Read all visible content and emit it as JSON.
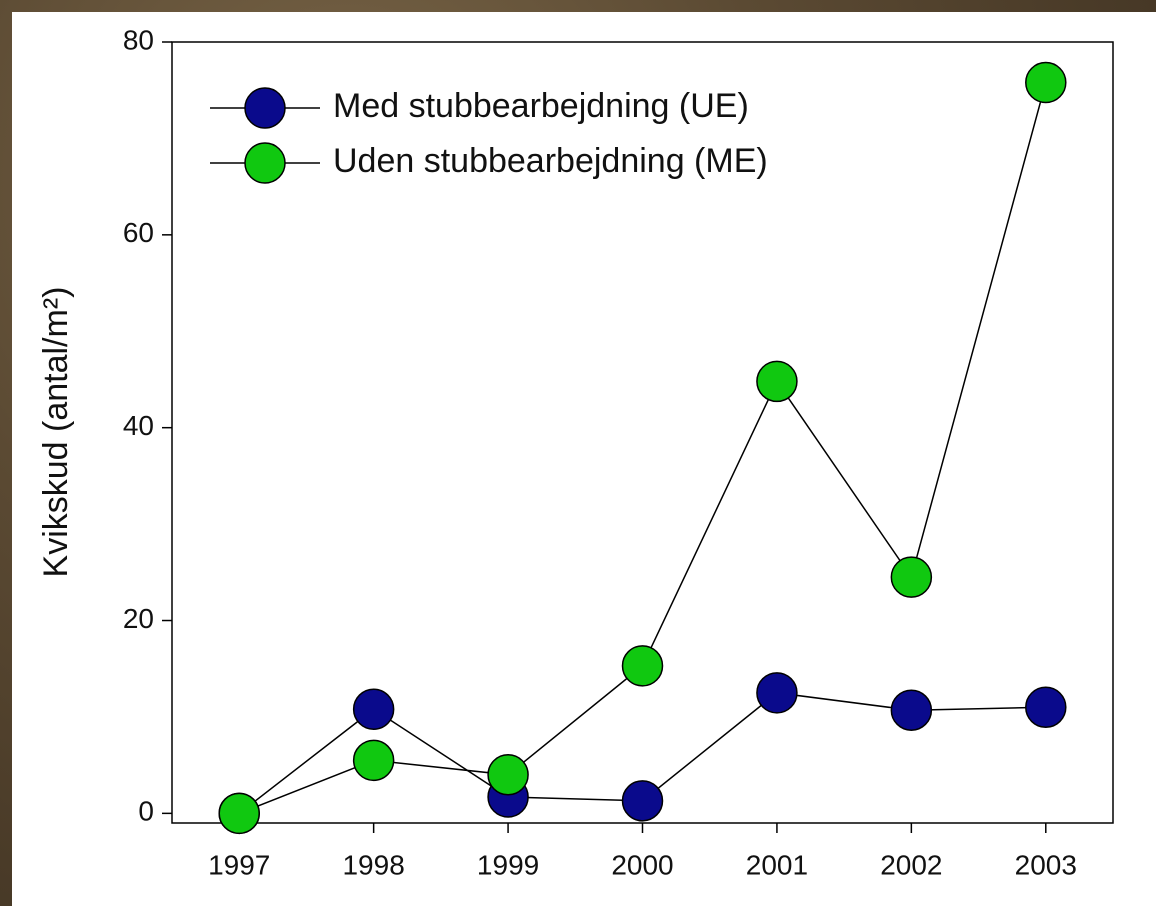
{
  "chart_data": {
    "type": "line",
    "y_label": "Kvikskud (antal/m²)",
    "x": [
      1997,
      1998,
      1999,
      2000,
      2001,
      2002,
      2003
    ],
    "series": [
      {
        "name": "Med stubbearbejdning (UE)",
        "color": "#0a0a8c",
        "values": [
          0,
          10.8,
          1.7,
          1.3,
          12.5,
          10.7,
          11.0
        ]
      },
      {
        "name": "Uden stubbearbejdning (ME)",
        "color": "#10c810",
        "values": [
          0,
          5.5,
          4.0,
          15.3,
          44.8,
          24.5,
          75.8
        ]
      }
    ],
    "xlim": [
      1996.5,
      2003.5
    ],
    "xticks": [
      1997,
      1998,
      1999,
      2000,
      2001,
      2002,
      2003
    ],
    "ylim": [
      -1,
      80
    ],
    "yticks": [
      0,
      20,
      40,
      60,
      80
    ],
    "legend": "top-left"
  }
}
